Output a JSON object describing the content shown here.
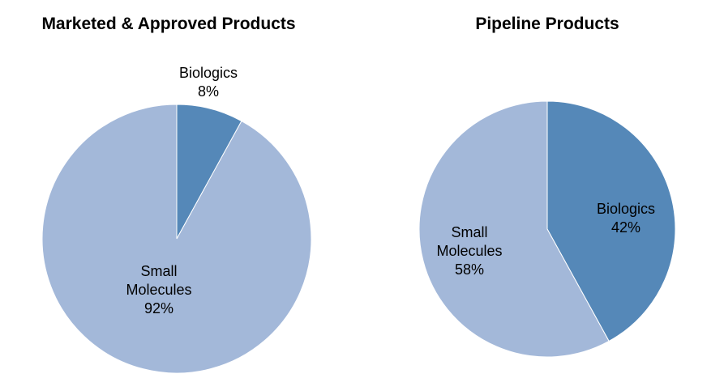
{
  "chart_data": [
    {
      "type": "pie",
      "title": "Marketed & Approved Products",
      "slices": [
        {
          "label_lines": [
            "Biologics"
          ],
          "percent_label": "8%",
          "value": 8,
          "color": "#5588b8"
        },
        {
          "label_lines": [
            "Small",
            "Molecules"
          ],
          "percent_label": "92%",
          "value": 92,
          "color": "#a3b8d9"
        }
      ]
    },
    {
      "type": "pie",
      "title": "Pipeline Products",
      "slices": [
        {
          "label_lines": [
            "Biologics"
          ],
          "percent_label": "42%",
          "value": 42,
          "color": "#5588b8"
        },
        {
          "label_lines": [
            "Small",
            "Molecules"
          ],
          "percent_label": "58%",
          "value": 58,
          "color": "#a3b8d9"
        }
      ]
    }
  ]
}
